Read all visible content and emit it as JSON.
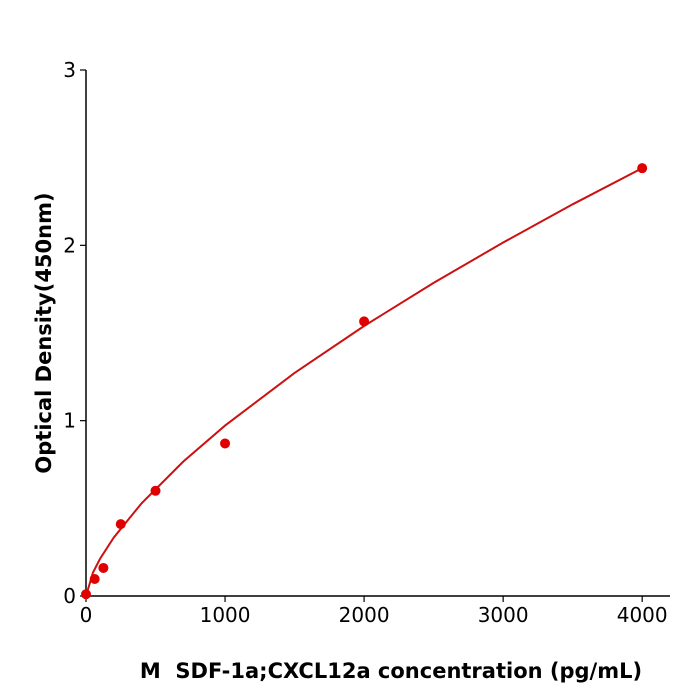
{
  "chart_data": {
    "type": "scatter",
    "x_label": "M  SDF-1a;CXCL12a concentration (pg/mL)",
    "y_label": "Optical Density(450nm)",
    "xlim": [
      0,
      4200
    ],
    "xticks": [
      0,
      1000,
      2000,
      3000,
      4000
    ],
    "ylim": [
      0,
      3
    ],
    "yticks": [
      0,
      1,
      2,
      3
    ],
    "series": [
      {
        "kind": "points",
        "color": "#e00000",
        "x": [
          0,
          62.5,
          125,
          250,
          500,
          1000,
          2000,
          4000
        ],
        "values": [
          0.01,
          0.097,
          0.16,
          0.41,
          0.6,
          0.87,
          1.566,
          2.44
        ]
      },
      {
        "kind": "line",
        "color": "#cc1111",
        "x": [
          0,
          50,
          100,
          200,
          400,
          700,
          1000,
          1500,
          2000,
          2500,
          3000,
          3500,
          4000
        ],
        "values": [
          0,
          0.133,
          0.211,
          0.334,
          0.529,
          0.767,
          0.972,
          1.272,
          1.54,
          1.786,
          2.016,
          2.234,
          2.44
        ]
      }
    ]
  }
}
